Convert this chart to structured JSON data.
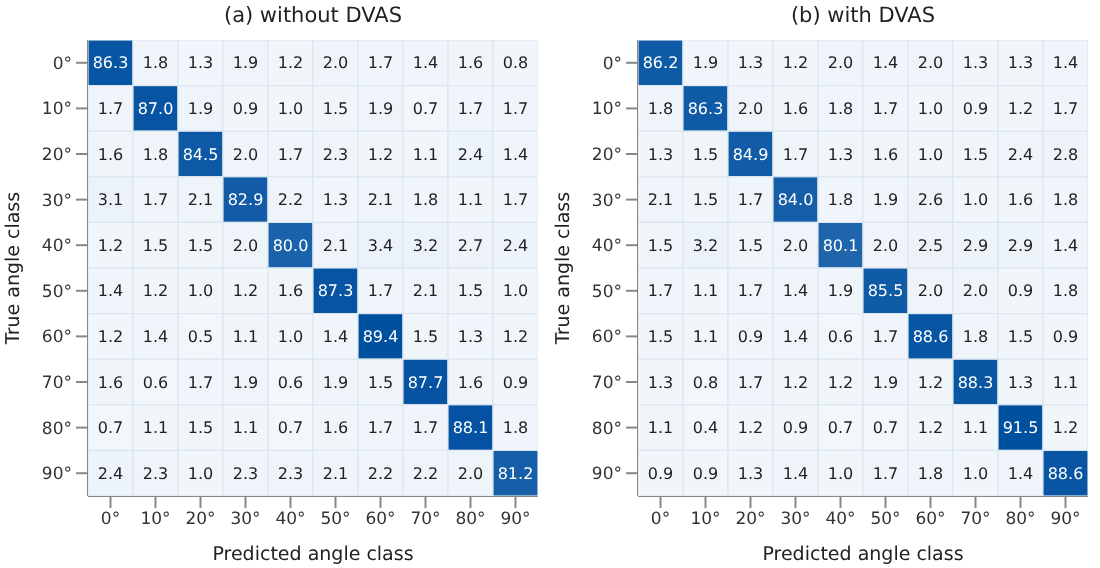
{
  "chart_data": [
    {
      "type": "heatmap",
      "title": "(a) without DVAS",
      "xlabel": "Predicted angle class",
      "ylabel": "True angle class",
      "data_labels": true,
      "categories": [
        "0°",
        "10°",
        "20°",
        "30°",
        "40°",
        "50°",
        "60°",
        "70°",
        "80°",
        "90°"
      ],
      "y_categories": [
        "0°",
        "10°",
        "20°",
        "30°",
        "40°",
        "50°",
        "60°",
        "70°",
        "80°",
        "90°"
      ],
      "cells": [
        [
          86.3,
          1.8,
          1.3,
          1.9,
          1.2,
          2.0,
          1.7,
          1.4,
          1.6,
          0.8
        ],
        [
          1.7,
          87.0,
          1.9,
          0.9,
          1.0,
          1.5,
          1.9,
          0.7,
          1.7,
          1.7
        ],
        [
          1.6,
          1.8,
          84.5,
          2.0,
          1.7,
          2.3,
          1.2,
          1.1,
          2.4,
          1.4
        ],
        [
          3.1,
          1.7,
          2.1,
          82.9,
          2.2,
          1.3,
          2.1,
          1.8,
          1.1,
          1.7
        ],
        [
          1.2,
          1.5,
          1.5,
          2.0,
          80.0,
          2.1,
          3.4,
          3.2,
          2.7,
          2.4
        ],
        [
          1.4,
          1.2,
          1.0,
          1.2,
          1.6,
          87.3,
          1.7,
          2.1,
          1.5,
          1.0
        ],
        [
          1.2,
          1.4,
          0.5,
          1.1,
          1.0,
          1.4,
          89.4,
          1.5,
          1.3,
          1.2
        ],
        [
          1.6,
          0.6,
          1.7,
          1.9,
          0.6,
          1.9,
          1.5,
          87.7,
          1.6,
          0.9
        ],
        [
          0.7,
          1.1,
          1.5,
          1.1,
          0.7,
          1.6,
          1.7,
          1.7,
          88.1,
          1.8
        ],
        [
          2.4,
          2.3,
          1.0,
          2.3,
          2.3,
          2.1,
          2.2,
          2.2,
          2.0,
          81.2
        ]
      ],
      "cell_labels": [
        [
          "86.3",
          "1.8",
          "1.3",
          "1.9",
          "1.2",
          "2.0",
          "1.7",
          "1.4",
          "1.6",
          "0.8"
        ],
        [
          "1.7",
          "87.0",
          "1.9",
          "0.9",
          "1.0",
          "1.5",
          "1.9",
          "0.7",
          "1.7",
          "1.7"
        ],
        [
          "1.6",
          "1.8",
          "84.5",
          "2.0",
          "1.7",
          "2.3",
          "1.2",
          "1.1",
          "2.4",
          "1.4"
        ],
        [
          "3.1",
          "1.7",
          "2.1",
          "82.9",
          "2.2",
          "1.3",
          "2.1",
          "1.8",
          "1.1",
          "1.7"
        ],
        [
          "1.2",
          "1.5",
          "1.5",
          "2.0",
          "80.0",
          "2.1",
          "3.4",
          "3.2",
          "2.7",
          "2.4"
        ],
        [
          "1.4",
          "1.2",
          "1.0",
          "1.2",
          "1.6",
          "87.3",
          "1.7",
          "2.1",
          "1.5",
          "1.0"
        ],
        [
          "1.2",
          "1.4",
          "0.5",
          "1.1",
          "1.0",
          "1.4",
          "89.4",
          "1.5",
          "1.3",
          "1.2"
        ],
        [
          "1.6",
          "0.6",
          "1.7",
          "1.9",
          "0.6",
          "1.9",
          "1.5",
          "87.7",
          "1.6",
          "0.9"
        ],
        [
          "0.7",
          "1.1",
          "1.5",
          "1.1",
          "0.7",
          "1.6",
          "1.7",
          "1.7",
          "88.1",
          "1.8"
        ],
        [
          "2.4",
          "2.3",
          "1.0",
          "2.3",
          "2.3",
          "2.1",
          "2.2",
          "2.2",
          "2.0",
          "81.2"
        ]
      ]
    },
    {
      "type": "heatmap",
      "title": "(b) with DVAS",
      "xlabel": "Predicted angle class",
      "ylabel": "True angle class",
      "data_labels": true,
      "categories": [
        "0°",
        "10°",
        "20°",
        "30°",
        "40°",
        "50°",
        "60°",
        "70°",
        "80°",
        "90°"
      ],
      "y_categories": [
        "0°",
        "10°",
        "20°",
        "30°",
        "40°",
        "50°",
        "60°",
        "70°",
        "80°",
        "90°"
      ],
      "cells": [
        [
          86.2,
          1.9,
          1.3,
          1.2,
          2.0,
          1.4,
          2.0,
          1.3,
          1.3,
          1.4
        ],
        [
          1.8,
          86.3,
          2.0,
          1.6,
          1.8,
          1.7,
          1.0,
          0.9,
          1.2,
          1.7
        ],
        [
          1.3,
          1.5,
          84.9,
          1.7,
          1.3,
          1.6,
          1.0,
          1.5,
          2.4,
          2.8
        ],
        [
          2.1,
          1.5,
          1.7,
          84.0,
          1.8,
          1.9,
          2.6,
          1.0,
          1.6,
          1.8
        ],
        [
          1.5,
          3.2,
          1.5,
          2.0,
          80.1,
          2.0,
          2.5,
          2.9,
          2.9,
          1.4
        ],
        [
          1.7,
          1.1,
          1.7,
          1.4,
          1.9,
          85.5,
          2.0,
          2.0,
          0.9,
          1.8
        ],
        [
          1.5,
          1.1,
          0.9,
          1.4,
          0.6,
          1.7,
          88.6,
          1.8,
          1.5,
          0.9
        ],
        [
          1.3,
          0.8,
          1.7,
          1.2,
          1.2,
          1.9,
          1.2,
          88.3,
          1.3,
          1.1
        ],
        [
          1.1,
          0.4,
          1.2,
          0.9,
          0.7,
          0.7,
          1.2,
          1.1,
          91.5,
          1.2
        ],
        [
          0.9,
          0.9,
          1.3,
          1.4,
          1.0,
          1.7,
          1.8,
          1.0,
          1.4,
          88.6
        ]
      ],
      "cell_labels": [
        [
          "86.2",
          "1.9",
          "1.3",
          "1.2",
          "2.0",
          "1.4",
          "2.0",
          "1.3",
          "1.3",
          "1.4"
        ],
        [
          "1.8",
          "86.3",
          "2.0",
          "1.6",
          "1.8",
          "1.7",
          "1.0",
          "0.9",
          "1.2",
          "1.7"
        ],
        [
          "1.3",
          "1.5",
          "84.9",
          "1.7",
          "1.3",
          "1.6",
          "1.0",
          "1.5",
          "2.4",
          "2.8"
        ],
        [
          "2.1",
          "1.5",
          "1.7",
          "84.0",
          "1.8",
          "1.9",
          "2.6",
          "1.0",
          "1.6",
          "1.8"
        ],
        [
          "1.5",
          "3.2",
          "1.5",
          "2.0",
          "80.1",
          "2.0",
          "2.5",
          "2.9",
          "2.9",
          "1.4"
        ],
        [
          "1.7",
          "1.1",
          "1.7",
          "1.4",
          "1.9",
          "85.5",
          "2.0",
          "2.0",
          "0.9",
          "1.8"
        ],
        [
          "1.5",
          "1.1",
          "0.9",
          "1.4",
          "0.6",
          "1.7",
          "88.6",
          "1.8",
          "1.5",
          "0.9"
        ],
        [
          "1.3",
          "0.8",
          "1.7",
          "1.2",
          "1.2",
          "1.9",
          "1.2",
          "88.3",
          "1.3",
          "1.1"
        ],
        [
          "1.1",
          "0.4",
          "1.2",
          "0.9",
          "0.7",
          "0.7",
          "1.2",
          "1.1",
          "91.5",
          "1.2"
        ],
        [
          "0.9",
          "0.9",
          "1.3",
          "1.4",
          "1.0",
          "1.7",
          "1.8",
          "1.0",
          "1.4",
          "88.6"
        ]
      ]
    }
  ]
}
